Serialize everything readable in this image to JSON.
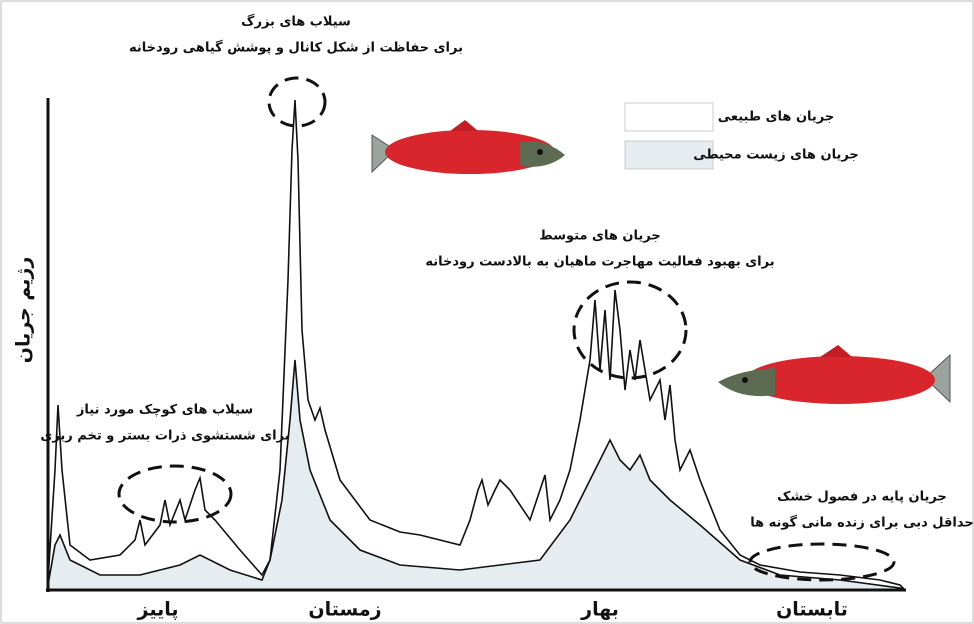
{
  "y_axis_label": "رژیم جریان",
  "seasons": [
    "پاییز",
    "زمستان",
    "بهار",
    "تابستان"
  ],
  "legend": [
    "جریان های طبیعی",
    "جریان های زیست محیطی"
  ],
  "annotations": [
    {
      "title": "سیلاب های بزرگ",
      "text": "برای حفاظت از شکل کانال و پوشش گیاهی رودخانه"
    },
    {
      "title": "جریان های متوسط",
      "text": "برای بهبود فعالیت مهاجرت ماهیان به بالادست رودخانه"
    },
    {
      "title": "سیلاب های کوچک مورد نیاز",
      "text": "برای شستشوی ذرات بستر و تخم ریزی"
    },
    {
      "title": "جریان پایه در فصول خشک",
      "text": "حداقل دبی برای زنده مانی گونه ها"
    }
  ]
}
